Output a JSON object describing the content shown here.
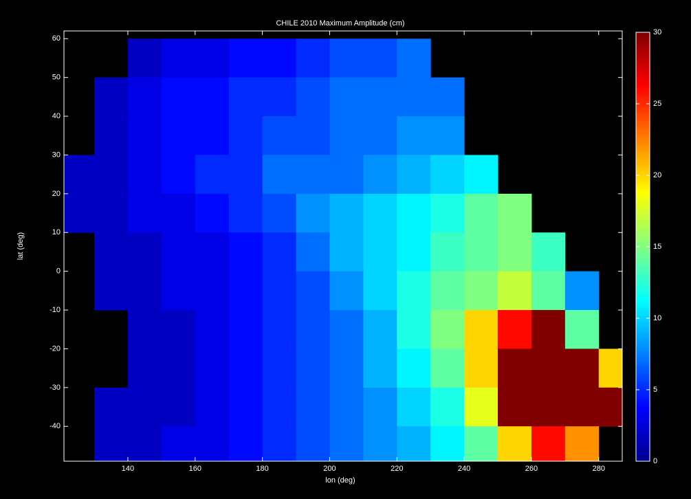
{
  "chart_data": {
    "type": "heatmap",
    "title": "CHILE 2010    Maximum Amplitude (cm)",
    "x_label": "lon (deg)",
    "y_label": "lat (deg)",
    "colormap": "jet",
    "x": [
      125,
      135,
      145,
      155,
      165,
      175,
      185,
      195,
      205,
      215,
      225,
      235,
      245,
      255,
      265,
      275,
      285
    ],
    "y": [
      55,
      45,
      35,
      25,
      15,
      5,
      -5,
      -15,
      -25,
      -35,
      -45
    ],
    "z": [
      [
        null,
        null,
        2,
        3,
        3,
        4,
        4,
        5,
        6,
        6,
        7,
        null,
        null,
        null,
        null,
        null,
        null
      ],
      [
        null,
        2,
        3,
        4,
        4,
        5,
        5,
        6,
        7,
        7,
        7,
        7,
        null,
        null,
        null,
        null,
        null
      ],
      [
        null,
        2,
        3,
        4,
        4,
        5,
        6,
        6,
        7,
        7,
        8,
        8,
        null,
        null,
        null,
        null,
        null
      ],
      [
        2,
        2,
        3,
        4,
        5,
        5,
        7,
        7,
        7,
        8,
        9,
        10,
        11,
        null,
        null,
        null,
        null
      ],
      [
        2,
        2,
        3,
        3,
        4,
        5,
        6,
        8,
        9,
        10,
        11,
        12,
        14,
        15,
        null,
        null,
        null
      ],
      [
        null,
        2,
        2,
        3,
        3,
        4,
        5,
        7,
        9,
        10,
        11,
        13,
        14,
        15,
        13,
        null,
        null
      ],
      [
        null,
        2,
        2,
        3,
        3,
        4,
        5,
        6,
        8,
        10,
        12,
        14,
        15,
        17,
        14,
        8,
        null
      ],
      [
        null,
        null,
        2,
        2,
        3,
        4,
        5,
        6,
        7,
        9,
        12,
        15,
        20,
        26,
        30,
        14,
        null
      ],
      [
        null,
        null,
        2,
        2,
        3,
        4,
        5,
        6,
        7,
        9,
        11,
        14,
        20,
        30,
        30,
        30,
        20
      ],
      [
        null,
        2,
        2,
        2,
        3,
        4,
        5,
        6,
        7,
        8,
        10,
        12,
        18,
        30,
        30,
        30,
        30
      ],
      [
        null,
        2,
        2,
        3,
        3,
        4,
        5,
        6,
        7,
        8,
        9,
        11,
        14,
        20,
        26,
        22,
        null
      ]
    ],
    "xlim": [
      121,
      287
    ],
    "ylim": [
      -49,
      62
    ],
    "xticks": [
      140,
      160,
      180,
      200,
      220,
      240,
      260,
      280
    ],
    "yticks": [
      -40,
      -30,
      -20,
      -10,
      0,
      10,
      20,
      30,
      40,
      50,
      60
    ],
    "clim": [
      0,
      30
    ],
    "cticks": [
      0,
      5,
      10,
      15,
      20,
      25,
      30
    ]
  }
}
